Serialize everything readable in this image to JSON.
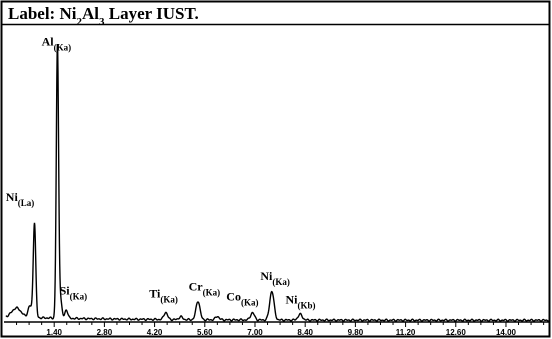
{
  "chart_data": {
    "type": "line",
    "title": "Label: Ni2Al3 Layer IUST.",
    "title_parts": [
      {
        "text": "Label: Ni",
        "sub": false
      },
      {
        "text": "2",
        "sub": true
      },
      {
        "text": "Al",
        "sub": false
      },
      {
        "text": "3",
        "sub": true
      },
      {
        "text": " Layer IUST.",
        "sub": false
      }
    ],
    "xlabel": "",
    "ylabel": "",
    "xlim": [
      0,
      15.2
    ],
    "ylim": [
      0,
      100
    ],
    "x_ticks": [
      1.4,
      2.8,
      4.2,
      5.6,
      7.0,
      8.4,
      9.8,
      11.2,
      12.6,
      14.0
    ],
    "x_tick_labels": [
      "1.40",
      "2.80",
      "4.20",
      "5.60",
      "7.00",
      "8.40",
      "9.80",
      "11.20",
      "12.60",
      "14.00"
    ],
    "grid": false,
    "line_color": "#000000",
    "peaks": [
      {
        "element": "Al",
        "line": "(Ka)",
        "x": 1.49,
        "y": 94.0,
        "label_x": 1.05,
        "label_y": 96.0
      },
      {
        "element": "Ni",
        "line": "(La)",
        "x": 0.85,
        "y": 33.0,
        "label_x": 0.05,
        "label_y": 42.0
      },
      {
        "element": "Si",
        "line": "(Ka)",
        "x": 1.74,
        "y": 3.0,
        "label_x": 1.55,
        "label_y": 9.5
      },
      {
        "element": "Ti",
        "line": "(Ka)",
        "x": 4.51,
        "y": 2.5,
        "label_x": 4.05,
        "label_y": 8.5
      },
      {
        "element": "Cr",
        "line": "(Ka)",
        "x": 5.41,
        "y": 6.5,
        "label_x": 5.15,
        "label_y": 11.0
      },
      {
        "element": "Co",
        "line": "(Ka)",
        "x": 6.93,
        "y": 2.5,
        "label_x": 6.2,
        "label_y": 7.5
      },
      {
        "element": "Ni",
        "line": "(Ka)",
        "x": 7.47,
        "y": 10.0,
        "label_x": 7.15,
        "label_y": 14.5
      },
      {
        "element": "Ni",
        "line": "(Kb)",
        "x": 8.26,
        "y": 2.0,
        "label_x": 7.85,
        "label_y": 6.5
      }
    ]
  }
}
